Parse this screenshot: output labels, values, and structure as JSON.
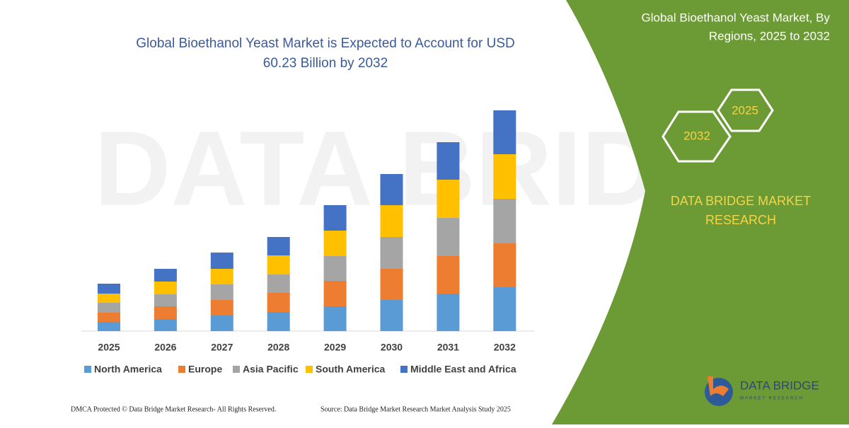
{
  "chart_data": {
    "type": "stacked-bar",
    "title": [
      "Global Bioethanol Yeast Market is Expected to Account for USD",
      "60.23 Billion by 2032"
    ],
    "categories": [
      "2025",
      "2026",
      "2027",
      "2028",
      "2029",
      "2030",
      "2031",
      "2032"
    ],
    "series": [
      {
        "name": "North America",
        "color": "#5b9bd5",
        "values": [
          13,
          17,
          22,
          27,
          35,
          44,
          53,
          62
        ]
      },
      {
        "name": "Europe",
        "color": "#ed7d31",
        "values": [
          13,
          18,
          22,
          27,
          36,
          44,
          53,
          62
        ]
      },
      {
        "name": "Asia Pacific",
        "color": "#a5a5a5",
        "values": [
          14,
          17,
          22,
          26,
          35,
          45,
          54,
          63
        ]
      },
      {
        "name": "South America",
        "color": "#ffc000",
        "values": [
          13,
          18,
          22,
          27,
          36,
          45,
          54,
          63
        ]
      },
      {
        "name": "Middle East and Africa",
        "color": "#4472c4",
        "values": [
          14,
          18,
          23,
          26,
          36,
          44,
          53,
          62
        ]
      }
    ],
    "ylim": [
      0,
      312
    ]
  },
  "panel": {
    "title": [
      "Global Bioethanol Yeast Market, By",
      "Regions, 2025 to 2032"
    ],
    "hexagons": [
      "2025",
      "2032"
    ],
    "brand": [
      "DATA BRIDGE MARKET",
      "RESEARCH"
    ]
  },
  "logo": {
    "name": "DATA BRIDGE",
    "tagline": "MARKET RESEARCH"
  },
  "footer": {
    "left": "DMCA Protected © Data Bridge Market Research-  All Rights Reserved.",
    "right": "Source: Data Bridge Market Research  Market Analysis Study 2025"
  }
}
